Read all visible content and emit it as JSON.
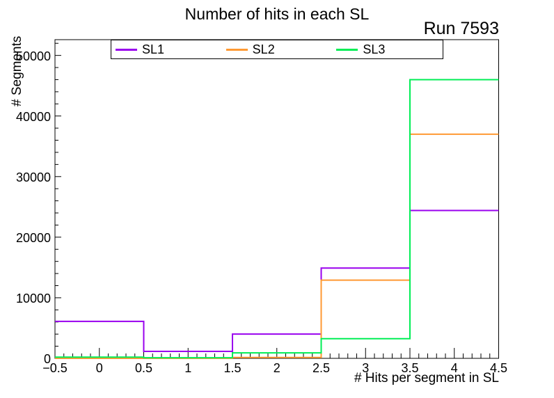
{
  "title": "Number of hits in each SL",
  "annotation": "Run 7593",
  "axes": {
    "x_title": "# Hits per segment in SL",
    "y_title": "# Segments"
  },
  "colors": {
    "frame": "#000000",
    "background": "#ffffff",
    "sl1": "#9900EE",
    "sl2": "#FF9933",
    "sl3": "#00EE55"
  },
  "legend": [
    {
      "label": "SL1",
      "color": "#9900EE"
    },
    {
      "label": "SL2",
      "color": "#FF9933"
    },
    {
      "label": "SL3",
      "color": "#00EE55"
    }
  ],
  "chart_data": {
    "type": "line",
    "style": "step-histogram",
    "title": "Number of hits in each SL",
    "xlabel": "# Hits per segment in SL",
    "ylabel": "# Segments",
    "bin_edges": [
      -0.5,
      0.5,
      1.5,
      2.5,
      3.5,
      4.5
    ],
    "bin_centers": [
      0,
      1,
      2,
      3,
      4
    ],
    "series": [
      {
        "name": "SL1",
        "color": "#9900EE",
        "values": [
          6100,
          1150,
          4000,
          14900,
          24400
        ]
      },
      {
        "name": "SL2",
        "color": "#FF9933",
        "values": [
          0,
          0,
          150,
          12900,
          37000
        ]
      },
      {
        "name": "SL3",
        "color": "#00EE55",
        "values": [
          200,
          100,
          900,
          3250,
          46000
        ]
      }
    ],
    "xlim": [
      -0.5,
      4.5
    ],
    "ylim": [
      0,
      52600
    ],
    "grid": false,
    "legend_position": "top-inside",
    "x_ticks": {
      "major_step": 0.5,
      "minor_step": 0.1,
      "labels": [
        "−0.5",
        "0",
        "0.5",
        "1",
        "1.5",
        "2",
        "2.5",
        "3",
        "3.5",
        "4",
        "4.5"
      ]
    },
    "y_ticks": {
      "major_step": 10000,
      "minor_step": 2000,
      "labels": [
        "0",
        "10000",
        "20000",
        "30000",
        "40000",
        "50000"
      ]
    }
  }
}
